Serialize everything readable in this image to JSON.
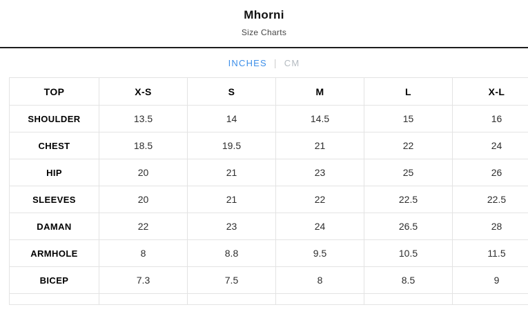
{
  "header": {
    "title": "Mhorni",
    "subtitle": "Size Charts"
  },
  "units": {
    "separator": "|",
    "options": [
      {
        "label": "INCHES",
        "active": true
      },
      {
        "label": "CM",
        "active": false
      }
    ]
  },
  "colors": {
    "active_unit": "#3d8fe9",
    "inactive_unit": "#b4bbc1",
    "divider": "#1d1d1d",
    "table_border": "#e3e3e3"
  },
  "table": {
    "columns": [
      "TOP",
      "X-S",
      "S",
      "M",
      "L",
      "X-L"
    ],
    "rows": [
      {
        "label": "SHOULDER",
        "values": [
          "13.5",
          "14",
          "14.5",
          "15",
          "16"
        ]
      },
      {
        "label": "CHEST",
        "values": [
          "18.5",
          "19.5",
          "21",
          "22",
          "24"
        ]
      },
      {
        "label": "HIP",
        "values": [
          "20",
          "21",
          "23",
          "25",
          "26"
        ]
      },
      {
        "label": "SLEEVES",
        "values": [
          "20",
          "21",
          "22",
          "22.5",
          "22.5"
        ]
      },
      {
        "label": "DAMAN",
        "values": [
          "22",
          "23",
          "24",
          "26.5",
          "28"
        ]
      },
      {
        "label": "ARMHOLE",
        "values": [
          "8",
          "8.8",
          "9.5",
          "10.5",
          "11.5"
        ]
      },
      {
        "label": "BICEP",
        "values": [
          "7.3",
          "7.5",
          "8",
          "8.5",
          "9"
        ]
      }
    ]
  }
}
